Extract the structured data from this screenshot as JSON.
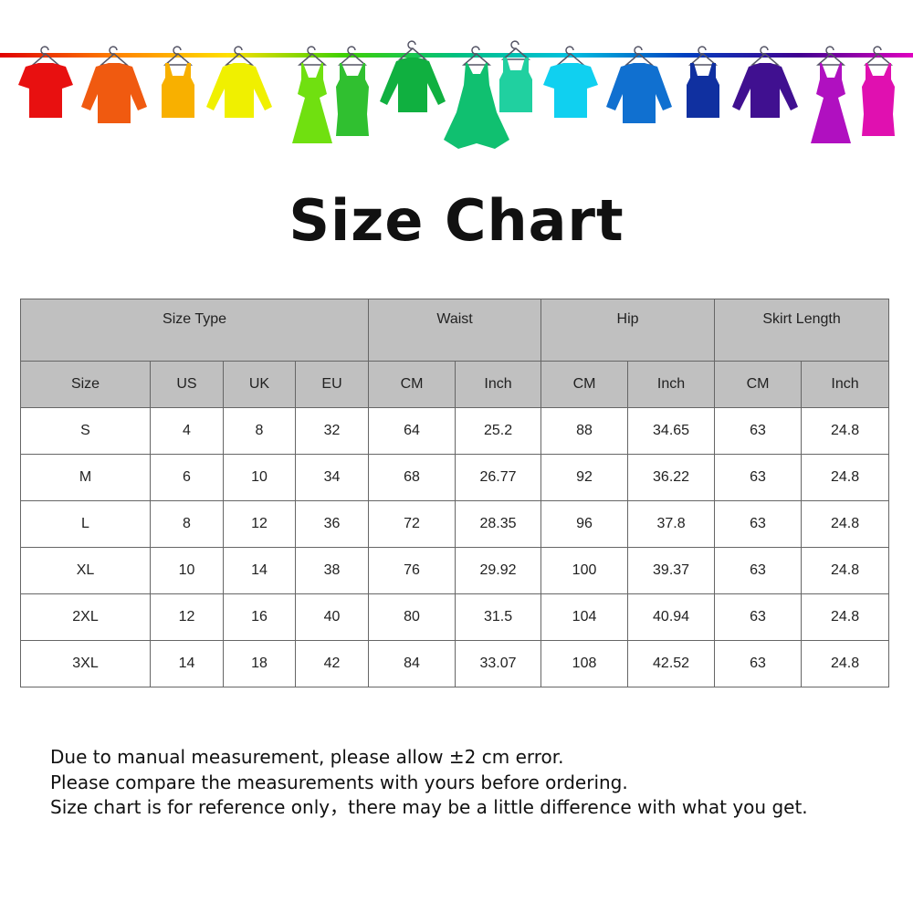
{
  "banner": {
    "rail_gradient": [
      "#e00000",
      "#ff8000",
      "#ffe000",
      "#40d000",
      "#00c080",
      "#00c0e0",
      "#0040c0",
      "#400090",
      "#e000c0"
    ],
    "items": [
      {
        "icon": "tshirt-icon",
        "color": "#e81010"
      },
      {
        "icon": "shirt-icon",
        "color": "#f05a10"
      },
      {
        "icon": "tank-top-icon",
        "color": "#f8b000"
      },
      {
        "icon": "sweater-icon",
        "color": "#f0f000"
      },
      {
        "icon": "dress-icon",
        "color": "#70e010"
      },
      {
        "icon": "belted-dress-icon",
        "color": "#30c030"
      },
      {
        "icon": "sweater-icon",
        "color": "#10b040"
      },
      {
        "icon": "flared-dress-icon",
        "color": "#10c070"
      },
      {
        "icon": "tank-top-icon",
        "color": "#20d0a0"
      },
      {
        "icon": "tshirt-icon",
        "color": "#10d0f0"
      },
      {
        "icon": "shirt-icon",
        "color": "#1070d0"
      },
      {
        "icon": "tank-top-icon",
        "color": "#1030a0"
      },
      {
        "icon": "sweater-icon",
        "color": "#401090"
      },
      {
        "icon": "dress-icon",
        "color": "#b010c0"
      },
      {
        "icon": "belted-dress-icon",
        "color": "#e010b0"
      }
    ]
  },
  "title": "Size Chart",
  "table": {
    "groups": [
      "Size Type",
      "Waist",
      "Hip",
      "Skirt Length"
    ],
    "subheaders": [
      "Size",
      "US",
      "UK",
      "EU",
      "CM",
      "Inch",
      "CM",
      "Inch",
      "CM",
      "Inch"
    ],
    "rows": [
      [
        "S",
        "4",
        "8",
        "32",
        "64",
        "25.2",
        "88",
        "34.65",
        "63",
        "24.8"
      ],
      [
        "M",
        "6",
        "10",
        "34",
        "68",
        "26.77",
        "92",
        "36.22",
        "63",
        "24.8"
      ],
      [
        "L",
        "8",
        "12",
        "36",
        "72",
        "28.35",
        "96",
        "37.8",
        "63",
        "24.8"
      ],
      [
        "XL",
        "10",
        "14",
        "38",
        "76",
        "29.92",
        "100",
        "39.37",
        "63",
        "24.8"
      ],
      [
        "2XL",
        "12",
        "16",
        "40",
        "80",
        "31.5",
        "104",
        "40.94",
        "63",
        "24.8"
      ],
      [
        "3XL",
        "14",
        "18",
        "42",
        "84",
        "33.07",
        "108",
        "42.52",
        "63",
        "24.8"
      ]
    ]
  },
  "notes": [
    "Due to manual measurement, please allow ±2 cm error.",
    "Please compare the measurements with yours before ordering.",
    "Size chart is for reference only，there may be a little difference with what you get."
  ]
}
